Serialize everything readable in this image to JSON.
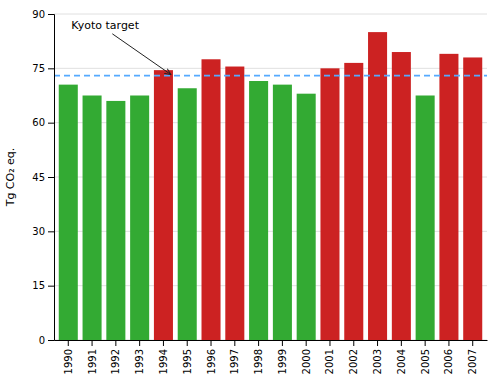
{
  "chart_data": {
    "type": "bar",
    "categories": [
      "1990",
      "1991",
      "1992",
      "1993",
      "1994",
      "1995",
      "1996",
      "1997",
      "1998",
      "1999",
      "2000",
      "2001",
      "2002",
      "2003",
      "2004",
      "2005",
      "2006",
      "2007"
    ],
    "values": [
      70.5,
      67.5,
      66.0,
      67.5,
      74.5,
      69.5,
      77.5,
      75.5,
      71.5,
      70.5,
      68.0,
      75.0,
      76.5,
      85.0,
      79.5,
      67.5,
      79.0,
      78.0
    ],
    "colors": [
      "#33aa33",
      "#33aa33",
      "#33aa33",
      "#33aa33",
      "#cc2222",
      "#33aa33",
      "#cc2222",
      "#cc2222",
      "#33aa33",
      "#33aa33",
      "#33aa33",
      "#cc2222",
      "#cc2222",
      "#cc2222",
      "#cc2222",
      "#33aa33",
      "#cc2222",
      "#cc2222"
    ],
    "y_label": "Tg CO₂ eq.",
    "ylim": [
      0,
      90
    ],
    "yticks": [
      0,
      15,
      30,
      45,
      60,
      75,
      90
    ],
    "grid": true,
    "reference_line": {
      "value": 73.0,
      "label": "Kyoto target",
      "color": "#55aaff"
    }
  }
}
